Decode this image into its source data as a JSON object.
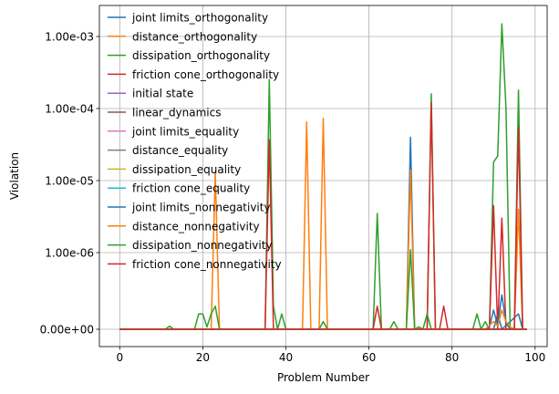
{
  "chart_data": {
    "type": "line",
    "title": "",
    "xlabel": "Problem Number",
    "ylabel": "Violation",
    "xlim": [
      -4.9,
      102.9
    ],
    "x_ticks": [
      0,
      20,
      40,
      60,
      80,
      100
    ],
    "y_scale": "symlog",
    "y_ticks": [
      {
        "value": 0,
        "label": "0.00e+00"
      },
      {
        "value": 1e-06,
        "label": "1.00e-06"
      },
      {
        "value": 1e-05,
        "label": "1.00e-05"
      },
      {
        "value": 0.0001,
        "label": "1.00e-04"
      },
      {
        "value": 0.001,
        "label": "1.00e-03"
      }
    ],
    "grid": true,
    "legend_position": "upper-left",
    "x": [
      0,
      98
    ],
    "series": [
      {
        "name": "joint limits_orthogonality",
        "color": "#1f77b4",
        "points": [
          [
            0,
            0
          ],
          [
            69,
            0
          ],
          [
            70,
            4e-05
          ],
          [
            71,
            0
          ],
          [
            90,
            0
          ],
          [
            91,
            2e-07
          ],
          [
            92,
            0
          ],
          [
            96,
            2e-07
          ],
          [
            97,
            0
          ],
          [
            98,
            0
          ]
        ]
      },
      {
        "name": "distance_orthogonality",
        "color": "#ff7f0e",
        "points": [
          [
            0,
            0
          ],
          [
            22,
            0
          ],
          [
            23,
            1.3e-05
          ],
          [
            24,
            0
          ],
          [
            44,
            0
          ],
          [
            45,
            6.5e-05
          ],
          [
            46,
            0
          ],
          [
            48,
            0
          ],
          [
            49,
            7.3e-05
          ],
          [
            50,
            0
          ],
          [
            69,
            0
          ],
          [
            70,
            1.4e-05
          ],
          [
            71,
            0
          ],
          [
            72,
            3e-08
          ],
          [
            73,
            0
          ],
          [
            95,
            0
          ],
          [
            96,
            4e-06
          ],
          [
            97,
            0
          ],
          [
            98,
            0
          ]
        ]
      },
      {
        "name": "dissipation_orthogonality",
        "color": "#2ca02c",
        "points": [
          [
            0,
            0
          ],
          [
            11,
            0
          ],
          [
            12,
            4e-08
          ],
          [
            13,
            0
          ],
          [
            18,
            0
          ],
          [
            19,
            2e-07
          ],
          [
            20,
            2e-07
          ],
          [
            21,
            3e-08
          ],
          [
            22,
            2e-07
          ],
          [
            23,
            3e-07
          ],
          [
            24,
            0
          ],
          [
            35,
            0
          ],
          [
            36,
            0.00025
          ],
          [
            37,
            3e-07
          ],
          [
            38,
            0
          ],
          [
            39,
            2e-07
          ],
          [
            40,
            0
          ],
          [
            48,
            0
          ],
          [
            49,
            1e-07
          ],
          [
            50,
            0
          ],
          [
            61,
            0
          ],
          [
            62,
            3.5e-06
          ],
          [
            63,
            0
          ],
          [
            65,
            0
          ],
          [
            66,
            1e-07
          ],
          [
            67,
            0
          ],
          [
            69,
            0
          ],
          [
            70,
            1.1e-06
          ],
          [
            71,
            0
          ],
          [
            74,
            0
          ],
          [
            75,
            0.00016
          ],
          [
            76,
            0
          ],
          [
            85,
            0
          ],
          [
            86,
            2e-07
          ],
          [
            87,
            0
          ],
          [
            88,
            1e-07
          ],
          [
            89,
            0
          ],
          [
            90,
            1.8e-05
          ],
          [
            91,
            2.2e-05
          ],
          [
            92,
            0.0015
          ],
          [
            93,
            0.0001
          ],
          [
            94,
            0
          ],
          [
            95,
            0
          ],
          [
            96,
            0.00018
          ],
          [
            97,
            0
          ],
          [
            98,
            0
          ]
        ]
      },
      {
        "name": "friction cone_orthogonality",
        "color": "#d62728",
        "points": [
          [
            0,
            0
          ],
          [
            35,
            0
          ],
          [
            36,
            3.7e-05
          ],
          [
            37,
            0
          ],
          [
            61,
            0
          ],
          [
            62,
            3e-07
          ],
          [
            63,
            0
          ],
          [
            74,
            0
          ],
          [
            75,
            0.00012
          ],
          [
            76,
            0
          ],
          [
            77,
            0
          ],
          [
            78,
            3e-07
          ],
          [
            79,
            0
          ],
          [
            89,
            0
          ],
          [
            90,
            4.5e-06
          ],
          [
            91,
            0
          ],
          [
            92,
            3e-06
          ],
          [
            93,
            0
          ],
          [
            95,
            0
          ],
          [
            96,
            5.5e-05
          ],
          [
            97,
            0
          ],
          [
            98,
            0
          ]
        ]
      },
      {
        "name": "initial state",
        "color": "#9467bd",
        "points": [
          [
            0,
            0
          ],
          [
            98,
            0
          ]
        ]
      },
      {
        "name": "linear_dynamics",
        "color": "#8c564b",
        "points": [
          [
            0,
            0
          ],
          [
            98,
            0
          ]
        ]
      },
      {
        "name": "joint limits_equality",
        "color": "#e377c2",
        "points": [
          [
            0,
            0
          ],
          [
            98,
            0
          ]
        ]
      },
      {
        "name": "distance_equality",
        "color": "#7f7f7f",
        "points": [
          [
            0,
            0
          ],
          [
            98,
            0
          ]
        ]
      },
      {
        "name": "dissipation_equality",
        "color": "#bcbd22",
        "points": [
          [
            0,
            0
          ],
          [
            98,
            0
          ]
        ]
      },
      {
        "name": "friction cone_equality",
        "color": "#17becf",
        "points": [
          [
            0,
            0
          ],
          [
            98,
            0
          ]
        ]
      },
      {
        "name": "joint limits_nonnegativity",
        "color": "#1f77b4",
        "points": [
          [
            0,
            0
          ],
          [
            88,
            0
          ],
          [
            89,
            3e-08
          ],
          [
            90,
            2.5e-07
          ],
          [
            91,
            5e-08
          ],
          [
            92,
            4.5e-07
          ],
          [
            93,
            8e-08
          ],
          [
            94,
            0
          ],
          [
            98,
            0
          ]
        ]
      },
      {
        "name": "distance_nonnegativity",
        "color": "#ff7f0e",
        "points": [
          [
            0,
            0
          ],
          [
            88,
            0
          ],
          [
            89,
            5e-08
          ],
          [
            90,
            1e-07
          ],
          [
            91,
            4e-08
          ],
          [
            92,
            2.5e-07
          ],
          [
            93,
            1e-07
          ],
          [
            94,
            3e-08
          ],
          [
            95,
            0
          ],
          [
            98,
            0
          ]
        ]
      },
      {
        "name": "dissipation_nonnegativity",
        "color": "#2ca02c",
        "points": [
          [
            0,
            0
          ],
          [
            71,
            0
          ],
          [
            72,
            3e-08
          ],
          [
            73,
            0
          ],
          [
            74,
            2e-07
          ],
          [
            75,
            0
          ],
          [
            98,
            0
          ]
        ]
      },
      {
        "name": "friction cone_nonnegativity",
        "color": "#d62728",
        "points": [
          [
            0,
            0
          ],
          [
            98,
            0
          ]
        ]
      }
    ]
  }
}
